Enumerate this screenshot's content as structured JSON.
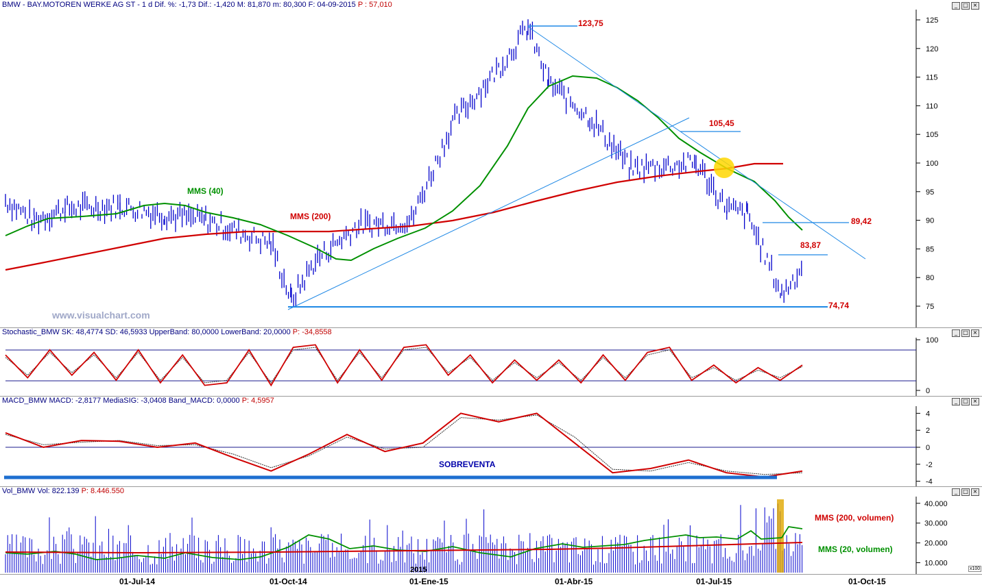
{
  "panes": {
    "price": {
      "header_prefix": "BMW - BAY.MOTOREN WERKE AG ST - 1 d Dif. %: -1,73 Dif.: -1,420 M: 81,870 m: 80,300 F: 04-09-2015",
      "header_hl": "P : 57,010",
      "ma40_label": "MMS (40)",
      "ma200_label": "MMS (200)",
      "levels": [
        "123,75",
        "105,45",
        "89,42",
        "83,87",
        "74,74"
      ],
      "yticks": [
        "125",
        "120",
        "115",
        "110",
        "105",
        "100",
        "95",
        "90",
        "85",
        "80",
        "75"
      ],
      "watermark": "www.visualchart.com"
    },
    "stochastic": {
      "header": "Stochastic_BMW SK: 48,4774 SD: 46,5933 UpperBand: 80,0000 LowerBand: 20,0000",
      "header_hl": "P: -34,8558",
      "yticks": [
        "100",
        "0"
      ]
    },
    "macd": {
      "header": "MACD_BMW MACD: -2,8177 MediaSIG: -3,0408 Band_MACD: 0,0000",
      "header_hl": "P: 4,5957",
      "annotation": "SOBREVENTA",
      "yticks": [
        "4",
        "2",
        "0",
        "-2",
        "-4"
      ]
    },
    "volume": {
      "header": "Vol_BMW Vol: 822.139",
      "header_hl": "P: 8.446.550",
      "ma200_label": "MMS (200, volumen)",
      "ma20_label": "MMS (20, volumen)",
      "yticks": [
        "40.000",
        "30.000",
        "20.000",
        "10.000"
      ],
      "unit": "x100",
      "year_label": "2015"
    }
  },
  "x_axis": [
    "01-Jul-14",
    "01-Oct-14",
    "01-Ene-15",
    "01-Abr-15",
    "01-Jul-15",
    "01-Oct-15"
  ],
  "window_buttons": [
    "_",
    "□",
    "×"
  ],
  "colors": {
    "price_bars": "#0000cc",
    "ma200": "#d00000",
    "ma40": "#009000",
    "trendline": "#1e88e5",
    "level_text": "#d00000",
    "highlight": "#ffd700"
  },
  "chart_data": [
    {
      "type": "line",
      "title": "BMW - BAY.MOTOREN WERKE AG ST",
      "ylim": [
        72,
        126
      ],
      "x": [
        "2014-04-07",
        "2014-05-01",
        "2014-06-01",
        "2014-07-01",
        "2014-08-01",
        "2014-09-01",
        "2014-10-01",
        "2014-10-16",
        "2014-11-01",
        "2014-12-01",
        "2015-01-01",
        "2015-02-01",
        "2015-03-01",
        "2015-03-16",
        "2015-04-01",
        "2015-05-01",
        "2015-06-01",
        "2015-07-01",
        "2015-07-15",
        "2015-08-01",
        "2015-08-24",
        "2015-09-04"
      ],
      "series": [
        {
          "name": "BMW",
          "values": [
            93.5,
            90,
            92,
            92.5,
            91,
            90,
            86,
            76,
            83,
            89,
            90,
            107,
            117,
            123.7,
            114,
            108,
            99,
            100,
            92,
            91,
            77,
            81.87
          ]
        },
        {
          "name": "MMS (40)",
          "values": [
            87,
            89,
            90,
            91,
            92,
            90,
            88,
            86,
            82,
            86,
            91,
            100,
            111,
            114,
            115,
            111,
            104,
            98,
            95,
            93,
            90,
            88
          ]
        },
        {
          "name": "MMS (200)",
          "values": [
            81.5,
            83,
            84.5,
            86,
            87,
            88,
            88.5,
            88,
            88,
            88.5,
            89,
            90,
            93,
            94,
            95.5,
            97,
            98,
            99,
            99.5,
            100,
            100,
            99.8
          ]
        }
      ],
      "levels": [
        123.75,
        105.45,
        89.42,
        83.87,
        74.74
      ]
    },
    {
      "type": "line",
      "title": "Stochastic_BMW",
      "ylim": [
        0,
        100
      ],
      "bands": [
        80,
        20
      ],
      "series": [
        {
          "name": "SK",
          "values": [
            70,
            25,
            80,
            30,
            75,
            20,
            80,
            15,
            70,
            10,
            15,
            80,
            10,
            85,
            90,
            15,
            80,
            20,
            85,
            90,
            30,
            70,
            15,
            60,
            20,
            60,
            15,
            70,
            20,
            75,
            85,
            20,
            50,
            15,
            45,
            20,
            50
          ]
        },
        {
          "name": "SD",
          "values": [
            65,
            30,
            75,
            35,
            70,
            25,
            75,
            20,
            65,
            15,
            20,
            75,
            15,
            80,
            85,
            20,
            75,
            25,
            80,
            85,
            35,
            65,
            20,
            55,
            25,
            55,
            20,
            65,
            25,
            70,
            80,
            25,
            45,
            20,
            40,
            25,
            47
          ]
        }
      ]
    },
    {
      "type": "line",
      "title": "MACD_BMW",
      "ylim": [
        -4.5,
        4.5
      ],
      "series": [
        {
          "name": "MACD",
          "values": [
            1.7,
            0,
            0.8,
            0.7,
            0,
            0.5,
            -1.2,
            -2.8,
            -0.8,
            1.5,
            -0.5,
            0.5,
            4,
            3,
            4,
            0.5,
            -3,
            -2.5,
            -1.5,
            -3,
            -3.5,
            -2.8
          ]
        },
        {
          "name": "MediaSIG",
          "values": [
            1.5,
            0.3,
            0.6,
            0.8,
            0.2,
            0.3,
            -0.8,
            -2.4,
            -1,
            1.2,
            -0.2,
            0,
            3.5,
            3.2,
            3.8,
            1.2,
            -2.6,
            -2.8,
            -1.8,
            -2.8,
            -3.2,
            -3
          ]
        }
      ]
    },
    {
      "type": "bar",
      "title": "Vol_BMW",
      "ylim": [
        5000,
        42000
      ],
      "series": [
        {
          "name": "MMS (200, volumen)",
          "values": [
            16000,
            16000,
            16000,
            16000,
            16500,
            17000,
            17500,
            18000,
            18500,
            19000,
            19500,
            20000,
            20000
          ]
        },
        {
          "name": "MMS (20, volumen)",
          "values": [
            16000,
            13000,
            16000,
            13000,
            24000,
            18000,
            13000,
            18000,
            16000,
            21000,
            22000,
            20000,
            27000
          ]
        }
      ]
    }
  ]
}
